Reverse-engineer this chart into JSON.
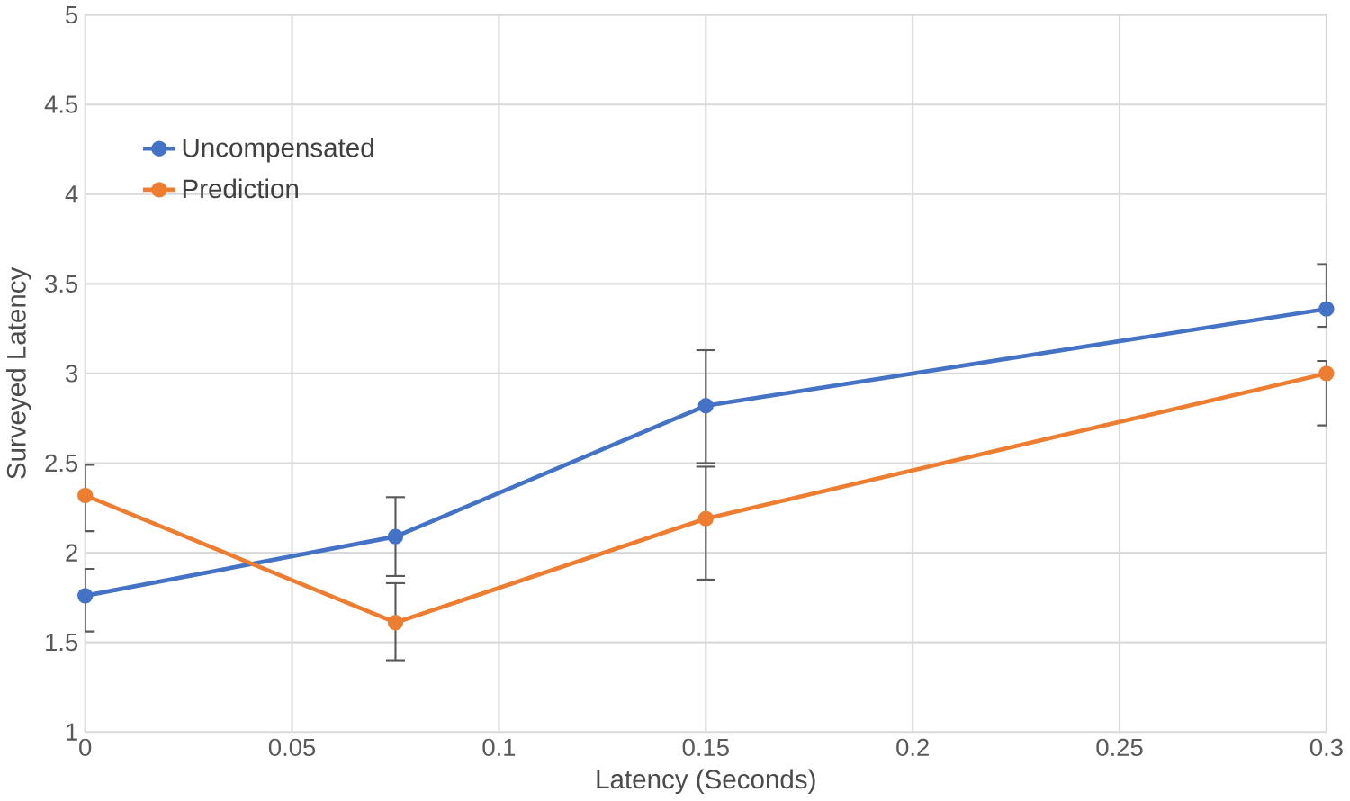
{
  "chart_data": {
    "type": "line",
    "xlabel": "Latency (Seconds)",
    "ylabel": "Surveyed Latency",
    "x": [
      0,
      0.075,
      0.15,
      0.3
    ],
    "series": [
      {
        "name": "Uncompensated",
        "color": "#4472c4",
        "values": [
          1.76,
          2.09,
          2.82,
          3.36
        ],
        "errors": [
          [
            1.56,
            1.91
          ],
          [
            1.87,
            2.31
          ],
          [
            2.5,
            3.13
          ],
          [
            3.26,
            3.61
          ]
        ]
      },
      {
        "name": "Prediction",
        "color": "#ed7d31",
        "values": [
          2.32,
          1.61,
          2.19,
          3.0
        ],
        "errors": [
          [
            2.12,
            2.49
          ],
          [
            1.4,
            1.83
          ],
          [
            1.85,
            2.48
          ],
          [
            2.71,
            3.07
          ]
        ]
      }
    ],
    "xlim": [
      0,
      0.3
    ],
    "xticks": [
      0,
      0.05,
      0.1,
      0.15,
      0.2,
      0.25,
      0.3
    ],
    "ylim": [
      1,
      5
    ],
    "yticks": [
      1,
      1.5,
      2,
      2.5,
      3,
      3.5,
      4,
      4.5,
      5
    ],
    "grid": true,
    "legend": "top left",
    "marker": "circle",
    "line_style": "solid"
  }
}
